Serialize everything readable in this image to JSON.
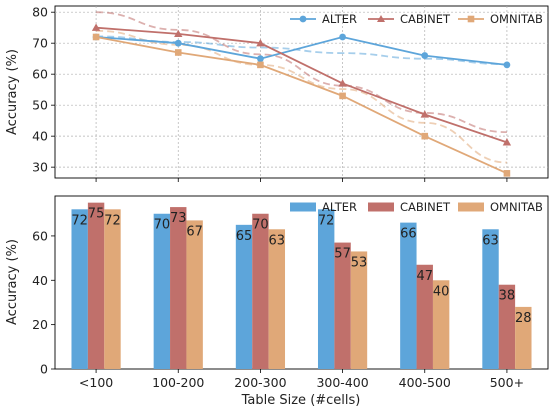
{
  "chart_data": [
    {
      "type": "line",
      "ylabel": "Accuracy (%)",
      "ylim": [
        26.5,
        82
      ],
      "yticks": [
        30,
        40,
        50,
        60,
        70,
        80
      ],
      "grid": true,
      "legend_position": "top-right",
      "x_positions": [
        0.5,
        1.5,
        2.5,
        3.5,
        4.5,
        5.5
      ],
      "series": [
        {
          "name": "ALTER",
          "color": "#5DA5DA",
          "marker": "circle",
          "values": [
            72,
            70,
            65,
            72,
            66,
            63
          ],
          "trend": [
            72.2,
            70.4,
            68.6,
            66.8,
            65.0,
            63.2
          ]
        },
        {
          "name": "CABINET",
          "color": "#C0706B",
          "marker": "triangle",
          "values": [
            75,
            73,
            70,
            57,
            47,
            38
          ],
          "trend": [
            80,
            74.3,
            66.4,
            56.3,
            47.5,
            41.3
          ]
        },
        {
          "name": "OMNITAB",
          "color": "#E0A878",
          "marker": "square",
          "values": [
            72,
            67,
            63,
            53,
            40,
            28
          ],
          "trend": [
            74,
            69.5,
            63,
            55.2,
            44.3,
            31.5
          ]
        }
      ]
    },
    {
      "type": "bar",
      "xlabel": "Table Size (#cells)",
      "ylabel": "Accuracy (%)",
      "ylim": [
        0,
        78
      ],
      "yticks": [
        0,
        20,
        40,
        60
      ],
      "categories": [
        "<100",
        "100-200",
        "200-300",
        "300-400",
        "400-500",
        "500+"
      ],
      "legend_position": "top-right",
      "series": [
        {
          "name": "ALTER",
          "color": "#5DA5DA",
          "values": [
            72,
            70,
            65,
            72,
            66,
            63
          ]
        },
        {
          "name": "CABINET",
          "color": "#C0706B",
          "values": [
            75,
            73,
            70,
            57,
            47,
            38
          ]
        },
        {
          "name": "OMNITAB",
          "color": "#E0A878",
          "values": [
            72,
            67,
            63,
            53,
            40,
            28
          ]
        }
      ]
    }
  ]
}
